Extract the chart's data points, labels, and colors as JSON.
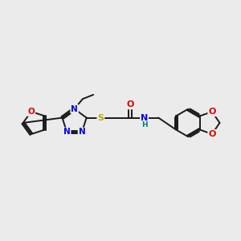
{
  "bg_color": "#ebebeb",
  "bond_color": "#1a1a1a",
  "bond_width": 1.4,
  "figsize": [
    3.0,
    3.0
  ],
  "dpi": 100,
  "atom_colors": {
    "N": "#0000ee",
    "O": "#dd0000",
    "S": "#bbaa00",
    "H": "#008080",
    "C": "#1a1a1a"
  }
}
